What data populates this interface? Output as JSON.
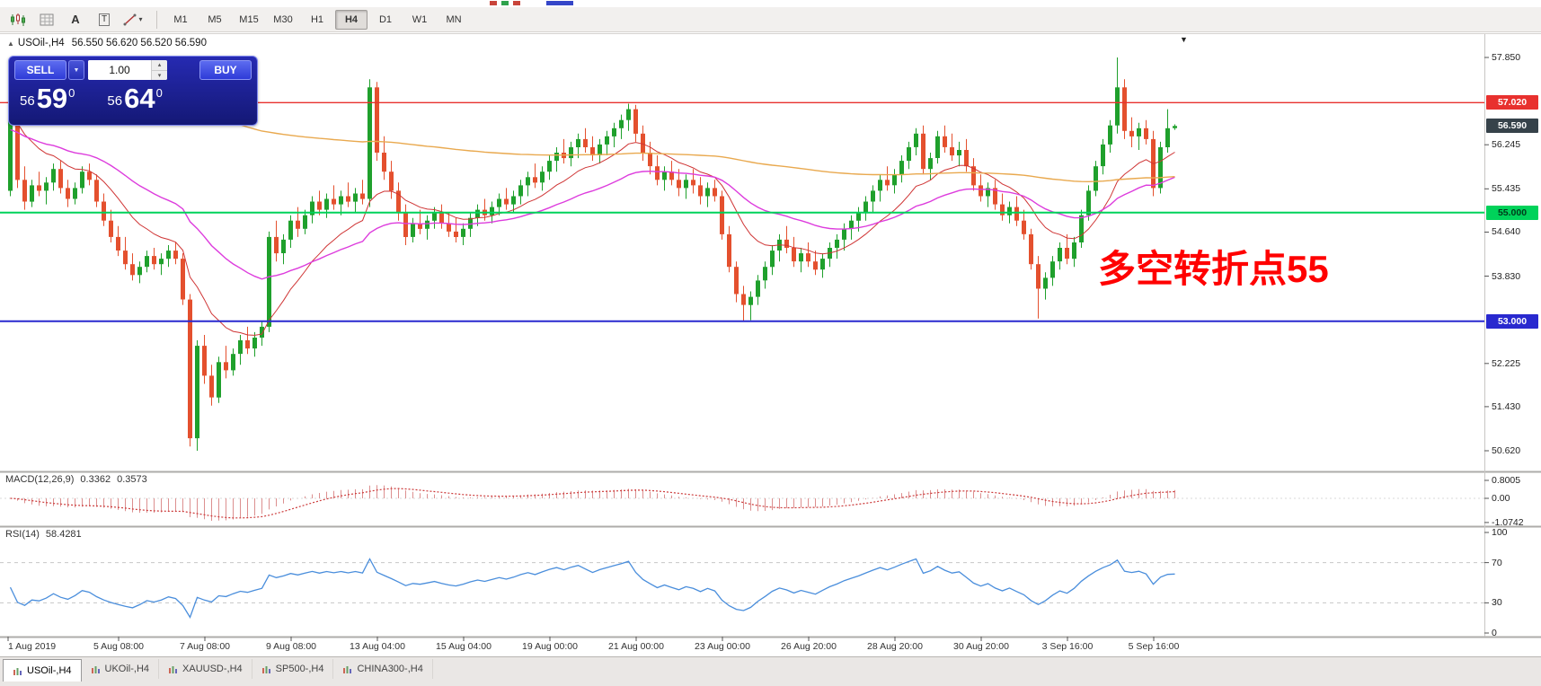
{
  "top_strip": {
    "marks": [
      {
        "x": 545,
        "w": 8,
        "color": "#c9443a"
      },
      {
        "x": 558,
        "w": 8,
        "color": "#2fa24c"
      },
      {
        "x": 571,
        "w": 8,
        "color": "#c9443a"
      },
      {
        "x": 608,
        "w": 30,
        "color": "#3546c8"
      }
    ]
  },
  "toolbar": {
    "tools": [
      {
        "name": "charts-icon"
      },
      {
        "name": "grid-icon"
      },
      {
        "name": "text-tool-icon",
        "glyph": "A"
      },
      {
        "name": "label-tool-icon",
        "glyph": "T"
      },
      {
        "name": "line-draw-icon"
      }
    ],
    "timeframes": [
      {
        "label": "M1"
      },
      {
        "label": "M5"
      },
      {
        "label": "M15"
      },
      {
        "label": "M30"
      },
      {
        "label": "H1"
      },
      {
        "label": "H4",
        "active": true
      },
      {
        "label": "D1"
      },
      {
        "label": "W1"
      },
      {
        "label": "MN"
      }
    ]
  },
  "chart_header": {
    "symbol": "USOil-,H4",
    "ohlc": "56.550 56.620 56.520 56.590"
  },
  "trade_panel": {
    "sell_label": "SELL",
    "buy_label": "BUY",
    "volume": "1.00",
    "bid": {
      "small": "56",
      "big": "59",
      "sup": "0"
    },
    "ask": {
      "small": "56",
      "big": "64",
      "sup": "0"
    }
  },
  "annotation": {
    "text": "多空转折点55",
    "color": "#ff0000"
  },
  "icons": {
    "collapse": "▲",
    "chevron_down": "▼",
    "spin_up": "▴",
    "spin_down": "▾",
    "shift_marker": "▼"
  },
  "price_axis": {
    "ticks": [
      {
        "label": "57.850",
        "price": 57.85
      },
      {
        "label": "56.245",
        "price": 56.245
      },
      {
        "label": "55.435",
        "price": 55.435
      },
      {
        "label": "54.640",
        "price": 54.64
      },
      {
        "label": "53.830",
        "price": 53.83
      },
      {
        "label": "52.225",
        "price": 52.225
      },
      {
        "label": "51.430",
        "price": 51.43
      },
      {
        "label": "50.620",
        "price": 50.62
      }
    ],
    "tags": [
      {
        "label": "57.020",
        "price": 57.02,
        "bg": "#e8312e",
        "fg": "#ffffff"
      },
      {
        "label": "56.590",
        "price": 56.59,
        "bg": "#36424a",
        "fg": "#ffffff"
      },
      {
        "label": "55.000",
        "price": 55.0,
        "bg": "#00d25a",
        "fg": "#00391a"
      },
      {
        "label": "53.000",
        "price": 53.0,
        "bg": "#2929cf",
        "fg": "#ffffff"
      }
    ]
  },
  "macd_panel": {
    "label": "MACD(12,26,9)",
    "main_value": "0.3362",
    "signal_value": "0.3573",
    "axis": [
      {
        "label": "0.8005",
        "value": 0.8005
      },
      {
        "label": "0.00",
        "value": 0
      },
      {
        "label": "-1.0742",
        "value": -1.0742
      }
    ],
    "colors": {
      "histogram": "#dc8f8f",
      "signal": "#cc3b3b"
    }
  },
  "rsi_panel": {
    "label": "RSI(14)",
    "value": "58.4281",
    "axis": [
      {
        "label": "100",
        "value": 100
      },
      {
        "label": "70",
        "value": 70
      },
      {
        "label": "30",
        "value": 30
      },
      {
        "label": "0",
        "value": 0
      }
    ],
    "levels": [
      70,
      30
    ],
    "color": "#4a8edc"
  },
  "time_axis": {
    "labels": [
      "1 Aug 2019",
      "5 Aug 08:00",
      "7 Aug 08:00",
      "9 Aug 08:00",
      "13 Aug 04:00",
      "15 Aug 04:00",
      "19 Aug 00:00",
      "21 Aug 00:00",
      "23 Aug 00:00",
      "26 Aug 20:00",
      "28 Aug 20:00",
      "30 Aug 20:00",
      "3 Sep 16:00",
      "5 Sep 16:00"
    ]
  },
  "tabs": [
    {
      "label": "USOil-,H4",
      "active": true
    },
    {
      "label": "UKOil-,H4"
    },
    {
      "label": "XAUUSD-,H4"
    },
    {
      "label": "SP500-,H4"
    },
    {
      "label": "CHINA300-,H4"
    }
  ],
  "chart_data": {
    "type": "candlestick",
    "symbol": "USOil-,H4",
    "timeframe": "H4",
    "ylim": [
      50.62,
      57.85
    ],
    "current_ohlc": {
      "open": 56.55,
      "high": 56.62,
      "low": 56.52,
      "close": 56.59
    },
    "bid": 56.59,
    "ask": 56.64,
    "colors": {
      "up": "#1fa02c",
      "down": "#e4502e"
    },
    "candles": [
      [
        55.4,
        57.0,
        55.3,
        56.9
      ],
      [
        56.9,
        56.95,
        55.45,
        55.6
      ],
      [
        55.6,
        55.85,
        55.05,
        55.2
      ],
      [
        55.2,
        55.6,
        55.1,
        55.5
      ],
      [
        55.5,
        55.75,
        55.3,
        55.4
      ],
      [
        55.4,
        55.65,
        55.15,
        55.55
      ],
      [
        55.55,
        55.9,
        55.4,
        55.8
      ],
      [
        55.8,
        55.95,
        55.35,
        55.45
      ],
      [
        55.45,
        55.6,
        55.1,
        55.25
      ],
      [
        55.25,
        55.55,
        55.15,
        55.45
      ],
      [
        55.45,
        55.85,
        55.35,
        55.75
      ],
      [
        55.75,
        55.9,
        55.5,
        55.6
      ],
      [
        55.6,
        55.7,
        55.1,
        55.2
      ],
      [
        55.2,
        55.35,
        54.75,
        54.85
      ],
      [
        54.85,
        55.05,
        54.45,
        54.55
      ],
      [
        54.55,
        54.75,
        54.2,
        54.3
      ],
      [
        54.3,
        54.55,
        53.95,
        54.05
      ],
      [
        54.05,
        54.25,
        53.75,
        53.85
      ],
      [
        53.85,
        54.1,
        53.7,
        54.0
      ],
      [
        54.0,
        54.3,
        53.9,
        54.2
      ],
      [
        54.2,
        54.35,
        53.95,
        54.05
      ],
      [
        54.05,
        54.25,
        53.85,
        54.15
      ],
      [
        54.15,
        54.4,
        54.0,
        54.3
      ],
      [
        54.3,
        54.45,
        54.05,
        54.15
      ],
      [
        54.15,
        54.25,
        53.3,
        53.4
      ],
      [
        53.4,
        53.5,
        50.7,
        50.85
      ],
      [
        50.85,
        52.65,
        50.62,
        52.55
      ],
      [
        52.55,
        52.75,
        51.85,
        52.0
      ],
      [
        52.0,
        52.2,
        51.45,
        51.6
      ],
      [
        51.6,
        52.35,
        51.5,
        52.25
      ],
      [
        52.25,
        52.55,
        51.95,
        52.1
      ],
      [
        52.1,
        52.5,
        52.0,
        52.4
      ],
      [
        52.4,
        52.75,
        52.2,
        52.65
      ],
      [
        52.65,
        52.9,
        52.4,
        52.5
      ],
      [
        52.5,
        52.8,
        52.35,
        52.7
      ],
      [
        52.7,
        53.0,
        52.55,
        52.9
      ],
      [
        52.9,
        54.65,
        52.8,
        54.55
      ],
      [
        54.55,
        54.85,
        54.1,
        54.25
      ],
      [
        54.25,
        54.6,
        54.05,
        54.5
      ],
      [
        54.5,
        54.95,
        54.35,
        54.85
      ],
      [
        54.85,
        55.1,
        54.55,
        54.7
      ],
      [
        54.7,
        55.05,
        54.6,
        54.95
      ],
      [
        54.95,
        55.3,
        54.8,
        55.2
      ],
      [
        55.2,
        55.4,
        54.95,
        55.05
      ],
      [
        55.05,
        55.35,
        54.9,
        55.25
      ],
      [
        55.25,
        55.5,
        55.05,
        55.15
      ],
      [
        55.15,
        55.4,
        54.95,
        55.3
      ],
      [
        55.3,
        55.55,
        55.1,
        55.2
      ],
      [
        55.2,
        55.45,
        55.0,
        55.35
      ],
      [
        55.35,
        55.6,
        55.15,
        55.25
      ],
      [
        55.25,
        57.45,
        55.1,
        57.3
      ],
      [
        57.3,
        57.4,
        55.95,
        56.1
      ],
      [
        56.1,
        56.4,
        55.6,
        55.75
      ],
      [
        55.75,
        55.95,
        55.25,
        55.4
      ],
      [
        55.4,
        55.55,
        54.85,
        55.0
      ],
      [
        55.0,
        55.15,
        54.4,
        54.55
      ],
      [
        54.55,
        54.9,
        54.45,
        54.8
      ],
      [
        54.8,
        55.05,
        54.6,
        54.7
      ],
      [
        54.7,
        54.95,
        54.5,
        54.85
      ],
      [
        54.85,
        55.1,
        54.7,
        55.0
      ],
      [
        55.0,
        55.15,
        54.7,
        54.8
      ],
      [
        54.8,
        55.0,
        54.55,
        54.65
      ],
      [
        54.65,
        54.9,
        54.45,
        54.55
      ],
      [
        54.55,
        54.8,
        54.4,
        54.7
      ],
      [
        54.7,
        55.0,
        54.55,
        54.9
      ],
      [
        54.9,
        55.15,
        54.75,
        55.05
      ],
      [
        55.05,
        55.25,
        54.85,
        54.95
      ],
      [
        54.95,
        55.2,
        54.8,
        55.1
      ],
      [
        55.1,
        55.35,
        54.95,
        55.25
      ],
      [
        55.25,
        55.45,
        55.05,
        55.15
      ],
      [
        55.15,
        55.4,
        55.0,
        55.3
      ],
      [
        55.3,
        55.6,
        55.15,
        55.5
      ],
      [
        55.5,
        55.75,
        55.3,
        55.65
      ],
      [
        55.65,
        55.9,
        55.45,
        55.55
      ],
      [
        55.55,
        55.85,
        55.4,
        55.75
      ],
      [
        55.75,
        56.05,
        55.6,
        55.95
      ],
      [
        55.95,
        56.2,
        55.75,
        56.1
      ],
      [
        56.1,
        56.35,
        55.9,
        56.0
      ],
      [
        56.0,
        56.3,
        55.85,
        56.2
      ],
      [
        56.2,
        56.45,
        56.0,
        56.35
      ],
      [
        56.35,
        56.55,
        56.1,
        56.2
      ],
      [
        56.2,
        56.4,
        55.95,
        56.05
      ],
      [
        56.05,
        56.35,
        55.9,
        56.25
      ],
      [
        56.25,
        56.5,
        56.05,
        56.4
      ],
      [
        56.4,
        56.65,
        56.2,
        56.55
      ],
      [
        56.55,
        56.8,
        56.35,
        56.7
      ],
      [
        56.7,
        57.0,
        56.5,
        56.9
      ],
      [
        56.9,
        56.98,
        56.3,
        56.45
      ],
      [
        56.45,
        56.6,
        55.95,
        56.1
      ],
      [
        56.1,
        56.3,
        55.7,
        55.85
      ],
      [
        55.85,
        56.05,
        55.5,
        55.6
      ],
      [
        55.6,
        55.85,
        55.4,
        55.75
      ],
      [
        55.75,
        55.95,
        55.5,
        55.6
      ],
      [
        55.6,
        55.8,
        55.3,
        55.45
      ],
      [
        55.45,
        55.7,
        55.25,
        55.6
      ],
      [
        55.6,
        55.8,
        55.35,
        55.5
      ],
      [
        55.5,
        55.65,
        55.15,
        55.3
      ],
      [
        55.3,
        55.55,
        55.1,
        55.45
      ],
      [
        55.45,
        55.6,
        55.2,
        55.3
      ],
      [
        55.3,
        55.4,
        54.5,
        54.6
      ],
      [
        54.6,
        54.75,
        53.9,
        54.0
      ],
      [
        54.0,
        54.1,
        53.35,
        53.5
      ],
      [
        53.5,
        53.65,
        53.0,
        53.3
      ],
      [
        53.3,
        53.55,
        53.02,
        53.45
      ],
      [
        53.45,
        53.85,
        53.3,
        53.75
      ],
      [
        53.75,
        54.1,
        53.6,
        54.0
      ],
      [
        54.0,
        54.4,
        53.85,
        54.3
      ],
      [
        54.3,
        54.6,
        54.1,
        54.5
      ],
      [
        54.5,
        54.75,
        54.25,
        54.35
      ],
      [
        54.35,
        54.55,
        54.0,
        54.1
      ],
      [
        54.1,
        54.35,
        53.9,
        54.25
      ],
      [
        54.25,
        54.45,
        54.0,
        54.1
      ],
      [
        54.1,
        54.3,
        53.85,
        53.95
      ],
      [
        53.95,
        54.25,
        53.8,
        54.15
      ],
      [
        54.15,
        54.45,
        54.0,
        54.35
      ],
      [
        54.35,
        54.6,
        54.15,
        54.5
      ],
      [
        54.5,
        54.8,
        54.3,
        54.7
      ],
      [
        54.7,
        54.95,
        54.5,
        54.85
      ],
      [
        54.85,
        55.1,
        54.65,
        55.0
      ],
      [
        55.0,
        55.3,
        54.85,
        55.2
      ],
      [
        55.2,
        55.5,
        55.0,
        55.4
      ],
      [
        55.4,
        55.7,
        55.2,
        55.6
      ],
      [
        55.6,
        55.85,
        55.4,
        55.5
      ],
      [
        55.5,
        55.8,
        55.35,
        55.7
      ],
      [
        55.7,
        56.05,
        55.55,
        55.95
      ],
      [
        55.95,
        56.3,
        55.8,
        56.2
      ],
      [
        56.2,
        56.55,
        56.05,
        56.45
      ],
      [
        56.45,
        56.6,
        55.7,
        55.8
      ],
      [
        55.8,
        56.1,
        55.6,
        56.0
      ],
      [
        56.0,
        56.5,
        55.9,
        56.4
      ],
      [
        56.4,
        56.6,
        56.1,
        56.2
      ],
      [
        56.2,
        56.45,
        55.95,
        56.05
      ],
      [
        56.05,
        56.3,
        55.85,
        56.15
      ],
      [
        56.15,
        56.35,
        55.75,
        55.85
      ],
      [
        55.85,
        56.0,
        55.4,
        55.5
      ],
      [
        55.5,
        55.7,
        55.2,
        55.3
      ],
      [
        55.3,
        55.55,
        55.1,
        55.45
      ],
      [
        55.45,
        55.6,
        55.05,
        55.15
      ],
      [
        55.15,
        55.35,
        54.85,
        54.95
      ],
      [
        54.95,
        55.2,
        54.8,
        55.1
      ],
      [
        55.1,
        55.3,
        54.75,
        54.85
      ],
      [
        54.85,
        55.05,
        54.5,
        54.6
      ],
      [
        54.6,
        54.7,
        53.95,
        54.05
      ],
      [
        54.05,
        54.2,
        53.05,
        53.6
      ],
      [
        53.6,
        53.9,
        53.4,
        53.8
      ],
      [
        53.8,
        54.2,
        53.65,
        54.1
      ],
      [
        54.1,
        54.45,
        53.95,
        54.35
      ],
      [
        54.35,
        54.6,
        54.05,
        54.15
      ],
      [
        54.15,
        54.55,
        54.0,
        54.45
      ],
      [
        54.45,
        55.05,
        54.35,
        54.95
      ],
      [
        54.95,
        55.5,
        54.85,
        55.4
      ],
      [
        55.4,
        55.95,
        55.3,
        55.85
      ],
      [
        55.85,
        56.35,
        55.7,
        56.25
      ],
      [
        56.25,
        56.7,
        56.1,
        56.6
      ],
      [
        56.6,
        57.85,
        56.45,
        57.3
      ],
      [
        57.3,
        57.45,
        56.35,
        56.5
      ],
      [
        56.5,
        56.75,
        56.2,
        56.4
      ],
      [
        56.4,
        56.65,
        56.15,
        56.55
      ],
      [
        56.55,
        56.7,
        56.25,
        56.35
      ],
      [
        56.35,
        56.5,
        55.3,
        55.45
      ],
      [
        55.45,
        56.3,
        55.35,
        56.2
      ],
      [
        56.2,
        56.9,
        56.1,
        56.55
      ],
      [
        56.55,
        56.62,
        56.52,
        56.59
      ]
    ],
    "moving_averages": [
      {
        "name": "fast",
        "period": 13,
        "seed": 56.8,
        "color": "#cf3434",
        "width": 1
      },
      {
        "name": "medium",
        "period": 35,
        "seed": 56.5,
        "color": "#dd3cdd",
        "width": 1.4
      },
      {
        "name": "slow",
        "period": 200,
        "seed": 57.6,
        "color": "#e9a94f",
        "width": 1.4
      }
    ],
    "hlines": [
      {
        "price": 57.02,
        "color": "#e8312e",
        "width": 1.4
      },
      {
        "price": 55.0,
        "color": "#00d25a",
        "width": 2
      },
      {
        "price": 53.0,
        "color": "#2929cf",
        "width": 2
      }
    ],
    "indicators": {
      "macd": {
        "fast": 12,
        "slow": 26,
        "signal": 9,
        "current_main": 0.3362,
        "current_signal": 0.3573
      },
      "rsi": {
        "period": 14,
        "current": 58.4281
      }
    }
  }
}
